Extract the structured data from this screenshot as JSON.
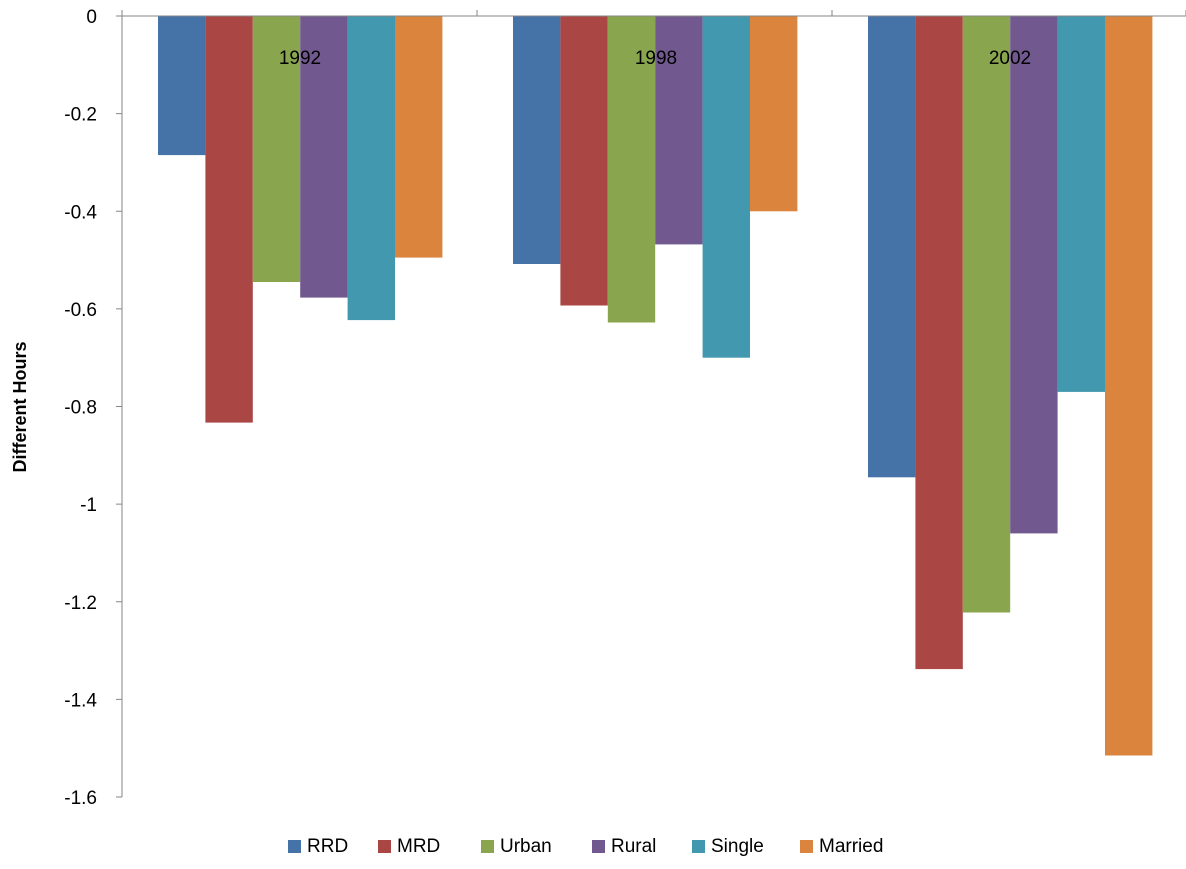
{
  "chart_data": {
    "type": "bar",
    "title": "",
    "xlabel": "",
    "ylabel": "Different Hours",
    "ylim": [
      -1.6,
      0
    ],
    "yticks": [
      0,
      -0.2,
      -0.4,
      -0.6,
      -0.8,
      -1,
      -1.2,
      -1.4,
      -1.6
    ],
    "ytick_labels": [
      "0",
      "-0.2",
      "-0.4",
      "-0.6",
      "-0.8",
      "-1",
      "-1.2",
      "-1.4",
      "-1.6"
    ],
    "categories": [
      "1992",
      "1998",
      "2002"
    ],
    "grid": false,
    "legend_position": "bottom",
    "series": [
      {
        "name": "RRD",
        "color": "#4572A7",
        "values": [
          -0.285,
          -0.508,
          -0.945
        ]
      },
      {
        "name": "MRD",
        "color": "#AA4643",
        "values": [
          -0.833,
          -0.593,
          -1.338
        ]
      },
      {
        "name": "Urban",
        "color": "#89A54E",
        "values": [
          -0.545,
          -0.628,
          -1.222
        ]
      },
      {
        "name": "Rural",
        "color": "#71588F",
        "values": [
          -0.577,
          -0.468,
          -1.06
        ]
      },
      {
        "name": "Single",
        "color": "#4198AF",
        "values": [
          -0.623,
          -0.7,
          -0.77
        ]
      },
      {
        "name": "Married",
        "color": "#DB843D",
        "values": [
          -0.495,
          -0.4,
          -1.515
        ]
      }
    ]
  }
}
